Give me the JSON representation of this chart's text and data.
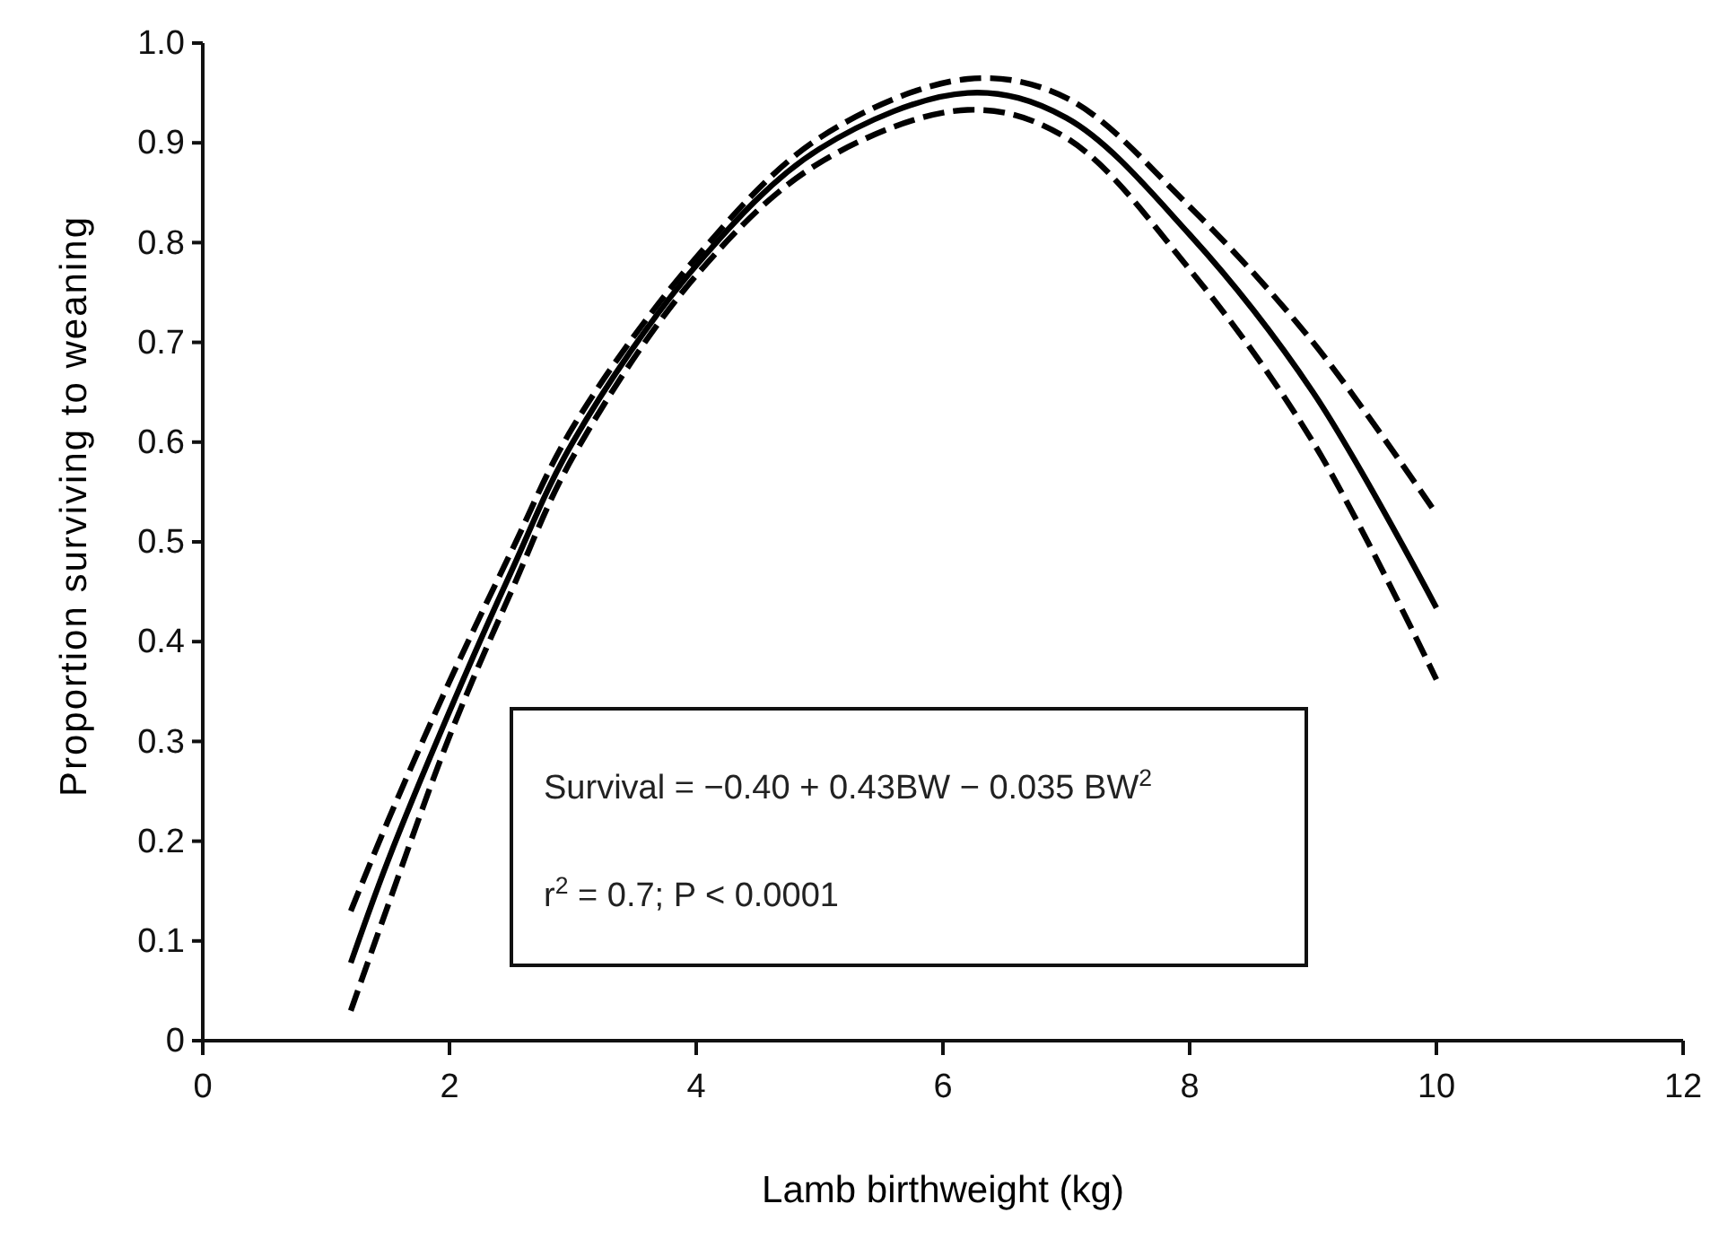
{
  "chart_data": {
    "type": "line",
    "xlabel": "Lamb birthweight (kg)",
    "ylabel": "Proportion surviving to weaning",
    "xlim": [
      0,
      12
    ],
    "xticks": [
      0,
      2,
      4,
      6,
      8,
      10,
      12
    ],
    "ylim": [
      0,
      1
    ],
    "yticks": [
      0,
      0.1,
      0.2,
      0.3,
      0.4,
      0.5,
      0.6,
      0.7,
      0.8,
      0.9,
      {
        "value": 1,
        "label": "1.0"
      }
    ],
    "series": [
      {
        "color": "#000000",
        "line_style": "dashed",
        "x": [
          1.2,
          1.5,
          2,
          2.5,
          3,
          4,
          5,
          6.2,
          7,
          8,
          9,
          10
        ],
        "values": [
          0.13,
          0.22,
          0.36,
          0.49,
          0.615,
          0.785,
          0.905,
          0.964,
          0.945,
          0.836,
          0.7,
          0.528
        ]
      },
      {
        "color": "#000000",
        "line_style": "solid",
        "x": [
          1.2,
          1.5,
          2,
          2.5,
          3,
          4,
          5,
          6.2,
          7,
          8,
          9,
          10
        ],
        "values": [
          0.078,
          0.18,
          0.33,
          0.47,
          0.6,
          0.777,
          0.894,
          0.95,
          0.925,
          0.808,
          0.65,
          0.434
        ]
      },
      {
        "color": "#000000",
        "line_style": "dashed",
        "x": [
          1.2,
          1.5,
          2,
          2.5,
          3,
          4,
          5,
          6.2,
          7,
          8,
          9,
          10
        ],
        "values": [
          0.03,
          0.135,
          0.305,
          0.45,
          0.585,
          0.767,
          0.88,
          0.933,
          0.905,
          0.773,
          0.6,
          0.362
        ]
      }
    ],
    "annotations": [
      "Survival = −0.40 + 0.43BW − 0.035 BW$^{2}$",
      "r$^{2}$ = 0.7; P < 0.0001"
    ]
  }
}
